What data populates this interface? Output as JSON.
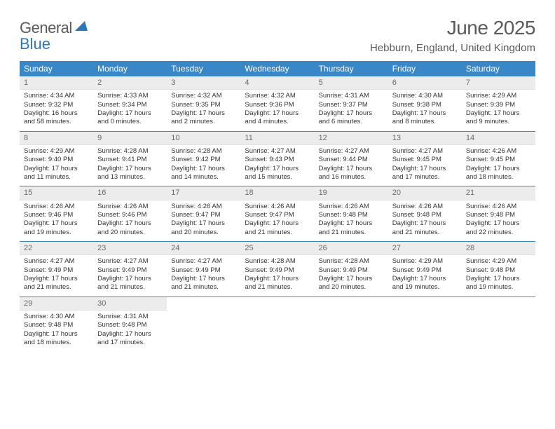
{
  "logo": {
    "text1": "General",
    "text2": "Blue"
  },
  "title": "June 2025",
  "location": "Hebburn, England, United Kingdom",
  "colors": {
    "header_bg": "#3a87c8",
    "header_fg": "#ffffff",
    "daynum_bg": "#ececec",
    "daynum_fg": "#6a6a6a",
    "text": "#333333",
    "rule": "#3a87c8",
    "logo_dark": "#5a5a5a",
    "logo_blue": "#2f77bb"
  },
  "weekdays": [
    "Sunday",
    "Monday",
    "Tuesday",
    "Wednesday",
    "Thursday",
    "Friday",
    "Saturday"
  ],
  "weeks": [
    [
      {
        "n": "1",
        "sr": "Sunrise: 4:34 AM",
        "ss": "Sunset: 9:32 PM",
        "dl": "Daylight: 16 hours and 58 minutes."
      },
      {
        "n": "2",
        "sr": "Sunrise: 4:33 AM",
        "ss": "Sunset: 9:34 PM",
        "dl": "Daylight: 17 hours and 0 minutes."
      },
      {
        "n": "3",
        "sr": "Sunrise: 4:32 AM",
        "ss": "Sunset: 9:35 PM",
        "dl": "Daylight: 17 hours and 2 minutes."
      },
      {
        "n": "4",
        "sr": "Sunrise: 4:32 AM",
        "ss": "Sunset: 9:36 PM",
        "dl": "Daylight: 17 hours and 4 minutes."
      },
      {
        "n": "5",
        "sr": "Sunrise: 4:31 AM",
        "ss": "Sunset: 9:37 PM",
        "dl": "Daylight: 17 hours and 6 minutes."
      },
      {
        "n": "6",
        "sr": "Sunrise: 4:30 AM",
        "ss": "Sunset: 9:38 PM",
        "dl": "Daylight: 17 hours and 8 minutes."
      },
      {
        "n": "7",
        "sr": "Sunrise: 4:29 AM",
        "ss": "Sunset: 9:39 PM",
        "dl": "Daylight: 17 hours and 9 minutes."
      }
    ],
    [
      {
        "n": "8",
        "sr": "Sunrise: 4:29 AM",
        "ss": "Sunset: 9:40 PM",
        "dl": "Daylight: 17 hours and 11 minutes."
      },
      {
        "n": "9",
        "sr": "Sunrise: 4:28 AM",
        "ss": "Sunset: 9:41 PM",
        "dl": "Daylight: 17 hours and 13 minutes."
      },
      {
        "n": "10",
        "sr": "Sunrise: 4:28 AM",
        "ss": "Sunset: 9:42 PM",
        "dl": "Daylight: 17 hours and 14 minutes."
      },
      {
        "n": "11",
        "sr": "Sunrise: 4:27 AM",
        "ss": "Sunset: 9:43 PM",
        "dl": "Daylight: 17 hours and 15 minutes."
      },
      {
        "n": "12",
        "sr": "Sunrise: 4:27 AM",
        "ss": "Sunset: 9:44 PM",
        "dl": "Daylight: 17 hours and 16 minutes."
      },
      {
        "n": "13",
        "sr": "Sunrise: 4:27 AM",
        "ss": "Sunset: 9:45 PM",
        "dl": "Daylight: 17 hours and 17 minutes."
      },
      {
        "n": "14",
        "sr": "Sunrise: 4:26 AM",
        "ss": "Sunset: 9:45 PM",
        "dl": "Daylight: 17 hours and 18 minutes."
      }
    ],
    [
      {
        "n": "15",
        "sr": "Sunrise: 4:26 AM",
        "ss": "Sunset: 9:46 PM",
        "dl": "Daylight: 17 hours and 19 minutes."
      },
      {
        "n": "16",
        "sr": "Sunrise: 4:26 AM",
        "ss": "Sunset: 9:46 PM",
        "dl": "Daylight: 17 hours and 20 minutes."
      },
      {
        "n": "17",
        "sr": "Sunrise: 4:26 AM",
        "ss": "Sunset: 9:47 PM",
        "dl": "Daylight: 17 hours and 20 minutes."
      },
      {
        "n": "18",
        "sr": "Sunrise: 4:26 AM",
        "ss": "Sunset: 9:47 PM",
        "dl": "Daylight: 17 hours and 21 minutes."
      },
      {
        "n": "19",
        "sr": "Sunrise: 4:26 AM",
        "ss": "Sunset: 9:48 PM",
        "dl": "Daylight: 17 hours and 21 minutes."
      },
      {
        "n": "20",
        "sr": "Sunrise: 4:26 AM",
        "ss": "Sunset: 9:48 PM",
        "dl": "Daylight: 17 hours and 21 minutes."
      },
      {
        "n": "21",
        "sr": "Sunrise: 4:26 AM",
        "ss": "Sunset: 9:48 PM",
        "dl": "Daylight: 17 hours and 22 minutes."
      }
    ],
    [
      {
        "n": "22",
        "sr": "Sunrise: 4:27 AM",
        "ss": "Sunset: 9:49 PM",
        "dl": "Daylight: 17 hours and 21 minutes."
      },
      {
        "n": "23",
        "sr": "Sunrise: 4:27 AM",
        "ss": "Sunset: 9:49 PM",
        "dl": "Daylight: 17 hours and 21 minutes."
      },
      {
        "n": "24",
        "sr": "Sunrise: 4:27 AM",
        "ss": "Sunset: 9:49 PM",
        "dl": "Daylight: 17 hours and 21 minutes."
      },
      {
        "n": "25",
        "sr": "Sunrise: 4:28 AM",
        "ss": "Sunset: 9:49 PM",
        "dl": "Daylight: 17 hours and 21 minutes."
      },
      {
        "n": "26",
        "sr": "Sunrise: 4:28 AM",
        "ss": "Sunset: 9:49 PM",
        "dl": "Daylight: 17 hours and 20 minutes."
      },
      {
        "n": "27",
        "sr": "Sunrise: 4:29 AM",
        "ss": "Sunset: 9:49 PM",
        "dl": "Daylight: 17 hours and 19 minutes."
      },
      {
        "n": "28",
        "sr": "Sunrise: 4:29 AM",
        "ss": "Sunset: 9:48 PM",
        "dl": "Daylight: 17 hours and 19 minutes."
      }
    ],
    [
      {
        "n": "29",
        "sr": "Sunrise: 4:30 AM",
        "ss": "Sunset: 9:48 PM",
        "dl": "Daylight: 17 hours and 18 minutes."
      },
      {
        "n": "30",
        "sr": "Sunrise: 4:31 AM",
        "ss": "Sunset: 9:48 PM",
        "dl": "Daylight: 17 hours and 17 minutes."
      },
      {
        "empty": true
      },
      {
        "empty": true
      },
      {
        "empty": true
      },
      {
        "empty": true
      },
      {
        "empty": true
      }
    ]
  ]
}
